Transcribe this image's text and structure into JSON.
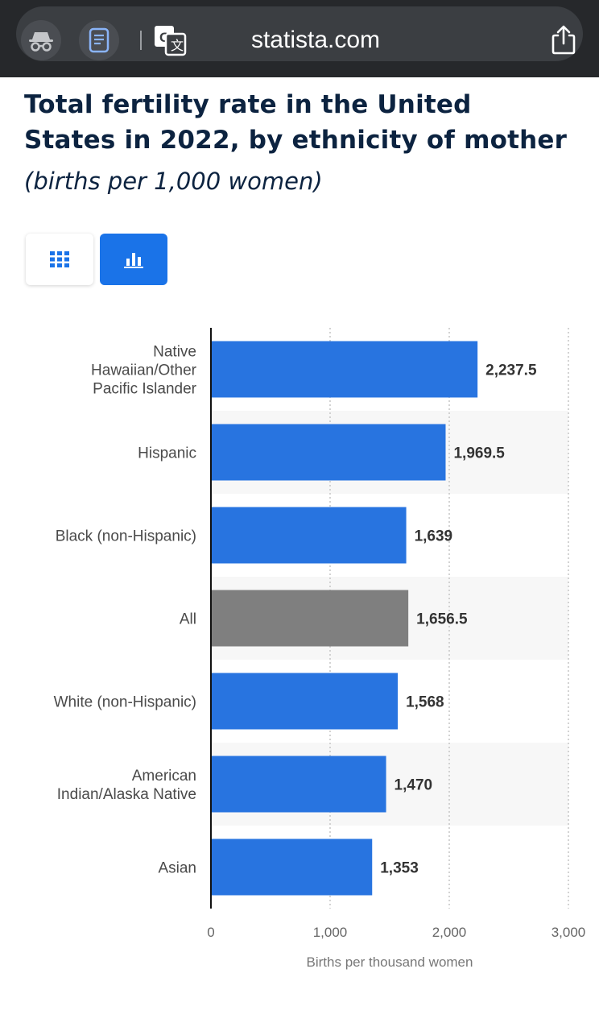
{
  "browser": {
    "url": "statista.com",
    "icons": [
      "incognito-icon",
      "reader-icon",
      "translate-icon",
      "share-icon"
    ]
  },
  "view_toggle": {
    "table_icon": "grid-icon",
    "chart_icon": "bar-chart-icon",
    "active": "chart"
  },
  "colors": {
    "bar": "#2874e0",
    "bar_highlight": "#7f7f7f",
    "title": "#0c2340",
    "toggle_active": "#1a73e8"
  },
  "chart_data": {
    "type": "bar",
    "orientation": "horizontal",
    "title": "Total fertility rate in the United States in 2022, by ethnicity of mother",
    "subtitle": "(births per 1,000 women)",
    "xlabel": "Births per thousand women",
    "ylabel": "",
    "xlim": [
      0,
      3000
    ],
    "xticks": [
      0,
      1000,
      2000,
      3000
    ],
    "xtick_labels": [
      "0",
      "1,000",
      "2,000",
      "3,000"
    ],
    "grid": "vertical dotted",
    "categories": [
      [
        "Native",
        "Hawaiian/Other",
        "Pacific Islander"
      ],
      [
        "Hispanic"
      ],
      [
        "Black (non-Hispanic)"
      ],
      [
        "All"
      ],
      [
        "White (non-Hispanic)"
      ],
      [
        "American",
        "Indian/Alaska Native"
      ],
      [
        "Asian"
      ]
    ],
    "values": [
      2237.5,
      1969.5,
      1639,
      1656.5,
      1568,
      1470,
      1353
    ],
    "value_labels": [
      "2,237.5",
      "1,969.5",
      "1,639",
      "1,656.5",
      "1,568",
      "1,470",
      "1,353"
    ],
    "highlighted": [
      false,
      false,
      false,
      true,
      false,
      false,
      false
    ]
  }
}
